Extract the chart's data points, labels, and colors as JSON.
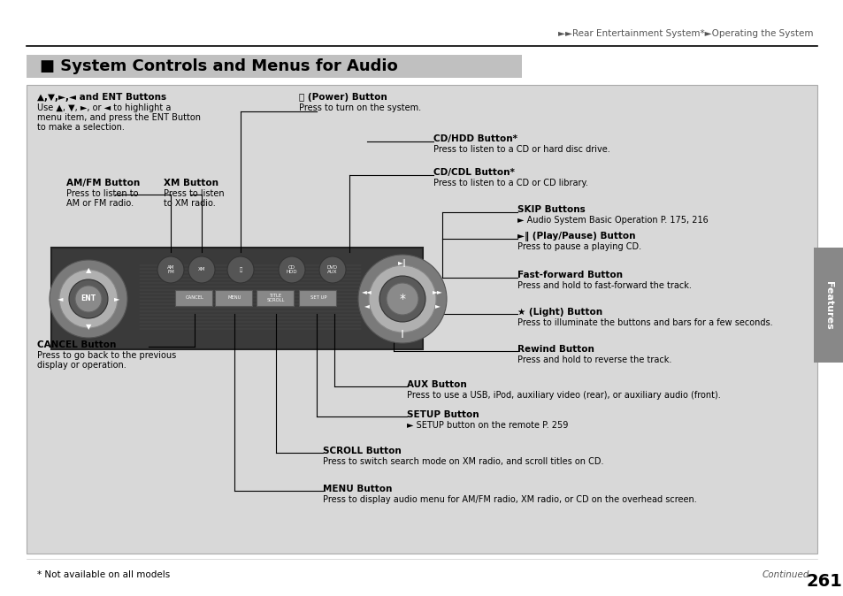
{
  "page_num": "261",
  "continued_text": "Continued",
  "footer_note": "* Not available on all models",
  "header_text": "►►Rear Entertainment System*►Operating the System",
  "section_title": "■ System Controls and Menus for Audio",
  "labels": {
    "ent_buttons_title": "▲,▼,►,◄ and ENT Buttons",
    "ent_buttons_body": "Use ▲, ▼, ►, or ◄ to highlight a\nmenu item, and press the ENT Button\nto make a selection.",
    "amfm_title": "AM/FM Button",
    "amfm_body": "Press to listen to\nAM or FM radio.",
    "xm_title": "XM Button",
    "xm_body": "Press to listen\nto XM radio.",
    "power_title": "⏻ (Power) Button",
    "power_body": "Press to turn on the system.",
    "cdhdd_title": "CD/HDD Button*",
    "cdhdd_body": "Press to listen to a CD or hard disc drive.",
    "cdcdl_title": "CD/CDL Button*",
    "cdcdl_body": "Press to listen to a CD or CD library.",
    "skip_title": "SKIP Buttons",
    "skip_body": "► Audio System Basic Operation P. 175, 216",
    "playpause_title": "►‖ (Play/Pause) Button",
    "playpause_body": "Press to pause a playing CD.",
    "fastfwd_title": "Fast-forward Button",
    "fastfwd_body": "Press and hold to fast-forward the track.",
    "light_title": "★ (Light) Button",
    "light_body": "Press to illuminate the buttons and bars for a few seconds.",
    "rewind_title": "Rewind Button",
    "rewind_body": "Press and hold to reverse the track.",
    "aux_title": "AUX Button",
    "aux_body": "Press to use a USB, iPod, auxiliary video (rear), or auxiliary audio (front).",
    "setup_title": "SETUP Button",
    "setup_body": "► SETUP button on the remote P. 259",
    "scroll_title": "SCROLL Button",
    "scroll_body": "Press to switch search mode on XM radio, and scroll titles on CD.",
    "menu_title": "MENU Button",
    "menu_body": "Press to display audio menu for AM/FM radio, XM radio, or CD on the overhead screen.",
    "cancel_title": "CANCEL Button",
    "cancel_body": "Press to go back to the previous\ndisplay or operation."
  }
}
